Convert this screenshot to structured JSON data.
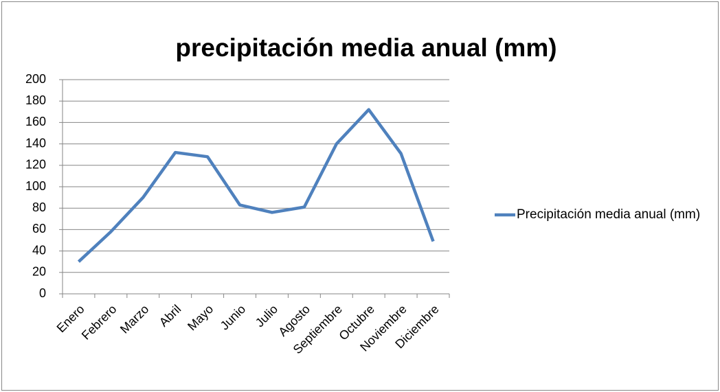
{
  "chart_data": {
    "type": "line",
    "title": "precipitación media anual (mm)",
    "categories": [
      "Enero",
      "Febrero",
      "Marzo",
      "Abril",
      "Mayo",
      "Junio",
      "Julio",
      "Agosto",
      "Septiembre",
      "Octubre",
      "Noviembre",
      "Diciembre"
    ],
    "series": [
      {
        "name": "Precipitación media anual (mm)",
        "color": "#4f81bd",
        "values": [
          30,
          58,
          90,
          132,
          128,
          83,
          76,
          81,
          140,
          172,
          131,
          49
        ]
      }
    ],
    "ylim": [
      0,
      200
    ],
    "yticks": [
      0,
      20,
      40,
      60,
      80,
      100,
      120,
      140,
      160,
      180,
      200
    ],
    "grid": true,
    "legend": "right"
  }
}
